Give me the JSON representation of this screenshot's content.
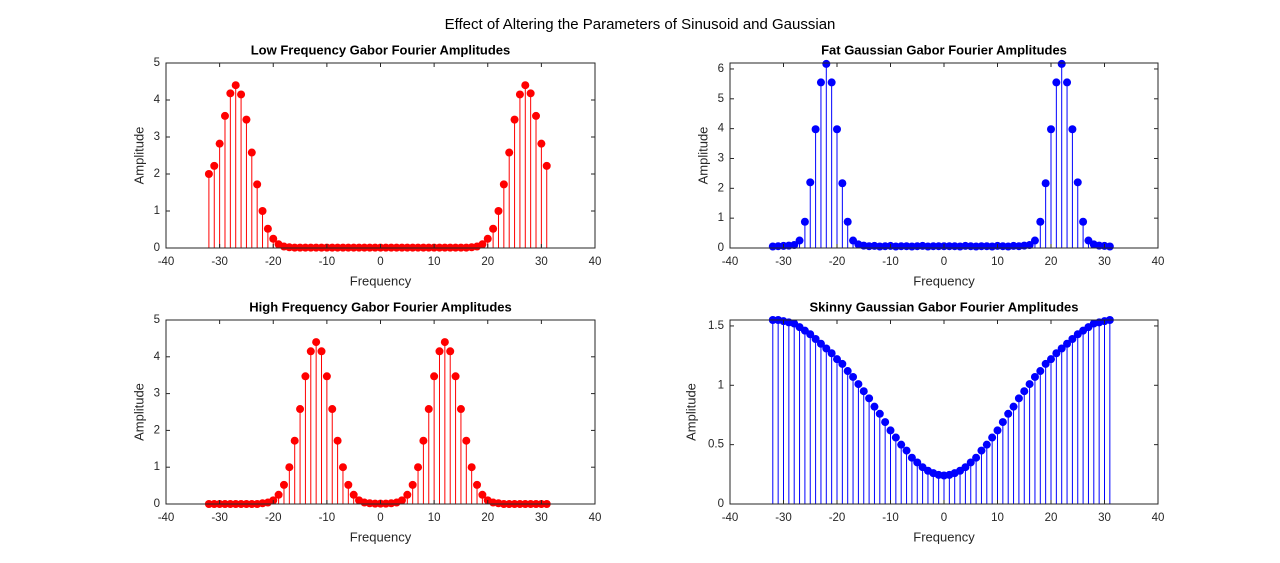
{
  "title": "Effect of Altering the Parameters of Sinusoid and Gaussian",
  "chart_data": [
    {
      "type": "stem",
      "title": "Low Frequency Gabor Fourier Amplitudes",
      "xlabel": "Frequency",
      "ylabel": "Amplitude",
      "color": "#ff0000",
      "x": [
        -32,
        -31,
        -30,
        -29,
        -28,
        -27,
        -26,
        -25,
        -24,
        -23,
        -22,
        -21,
        -20,
        -19,
        -18,
        -17,
        -16,
        -15,
        -14,
        -13,
        -12,
        -11,
        -10,
        -9,
        -8,
        -7,
        -6,
        -5,
        -4,
        -3,
        -2,
        -1,
        0,
        1,
        2,
        3,
        4,
        5,
        6,
        7,
        8,
        9,
        10,
        11,
        12,
        13,
        14,
        15,
        16,
        17,
        18,
        19,
        20,
        21,
        22,
        23,
        24,
        25,
        26,
        27,
        28,
        29,
        30,
        31
      ],
      "values": [
        2.0,
        2.22,
        2.82,
        3.57,
        4.18,
        4.4,
        4.15,
        3.47,
        2.58,
        1.72,
        1.0,
        0.52,
        0.25,
        0.1,
        0.04,
        0.02,
        0.01,
        0.01,
        0.01,
        0.01,
        0.01,
        0.01,
        0.01,
        0.01,
        0.01,
        0.01,
        0.01,
        0.01,
        0.01,
        0.01,
        0.01,
        0.01,
        0.01,
        0.01,
        0.01,
        0.01,
        0.01,
        0.01,
        0.01,
        0.01,
        0.01,
        0.01,
        0.01,
        0.01,
        0.01,
        0.01,
        0.01,
        0.01,
        0.01,
        0.02,
        0.04,
        0.1,
        0.25,
        0.52,
        1.0,
        1.72,
        2.58,
        3.47,
        4.15,
        4.4,
        4.18,
        3.57,
        2.82,
        2.22
      ],
      "xlim": [
        -40,
        40
      ],
      "xticks": [
        -40,
        -30,
        -20,
        -10,
        0,
        10,
        20,
        30,
        40
      ],
      "ylim": [
        0,
        5
      ],
      "yticks": [
        0,
        1,
        2,
        3,
        4,
        5
      ]
    },
    {
      "type": "stem",
      "title": "Fat Gaussian Gabor Fourier Amplitudes",
      "xlabel": "Frequency",
      "ylabel": "Amplitude",
      "color": "#0000ff",
      "x": [
        -32,
        -31,
        -30,
        -29,
        -28,
        -27,
        -26,
        -25,
        -24,
        -23,
        -22,
        -21,
        -20,
        -19,
        -18,
        -17,
        -16,
        -15,
        -14,
        -13,
        -12,
        -11,
        -10,
        -9,
        -8,
        -7,
        -6,
        -5,
        -4,
        -3,
        -2,
        -1,
        0,
        1,
        2,
        3,
        4,
        5,
        6,
        7,
        8,
        9,
        10,
        11,
        12,
        13,
        14,
        15,
        16,
        17,
        18,
        19,
        20,
        21,
        22,
        23,
        24,
        25,
        26,
        27,
        28,
        29,
        30,
        31
      ],
      "values": [
        0.05,
        0.06,
        0.07,
        0.08,
        0.1,
        0.25,
        0.88,
        2.2,
        3.98,
        5.55,
        6.17,
        5.55,
        3.98,
        2.17,
        0.88,
        0.25,
        0.12,
        0.08,
        0.06,
        0.07,
        0.05,
        0.06,
        0.07,
        0.05,
        0.06,
        0.06,
        0.05,
        0.06,
        0.07,
        0.05,
        0.06,
        0.06,
        0.06,
        0.06,
        0.06,
        0.05,
        0.07,
        0.06,
        0.05,
        0.06,
        0.06,
        0.05,
        0.07,
        0.06,
        0.05,
        0.07,
        0.06,
        0.08,
        0.1,
        0.25,
        0.88,
        2.17,
        3.98,
        5.55,
        6.17,
        5.55,
        3.98,
        2.2,
        0.88,
        0.25,
        0.12,
        0.08,
        0.07,
        0.05
      ],
      "xlim": [
        -40,
        40
      ],
      "xticks": [
        -40,
        -30,
        -20,
        -10,
        0,
        10,
        20,
        30,
        40
      ],
      "ylim": [
        0,
        6.2
      ],
      "yticks": [
        0,
        1,
        2,
        3,
        4,
        5,
        6
      ]
    },
    {
      "type": "stem",
      "title": "High Frequency Gabor Fourier Amplitudes",
      "xlabel": "Frequency",
      "ylabel": "Amplitude",
      "color": "#ff0000",
      "x": [
        -32,
        -31,
        -30,
        -29,
        -28,
        -27,
        -26,
        -25,
        -24,
        -23,
        -22,
        -21,
        -20,
        -19,
        -18,
        -17,
        -16,
        -15,
        -14,
        -13,
        -12,
        -11,
        -10,
        -9,
        -8,
        -7,
        -6,
        -5,
        -4,
        -3,
        -2,
        -1,
        0,
        1,
        2,
        3,
        4,
        5,
        6,
        7,
        8,
        9,
        10,
        11,
        12,
        13,
        14,
        15,
        16,
        17,
        18,
        19,
        20,
        21,
        22,
        23,
        24,
        25,
        26,
        27,
        28,
        29,
        30,
        31
      ],
      "values": [
        0,
        0,
        0,
        0,
        0,
        0,
        0,
        0,
        0,
        0,
        0.02,
        0.04,
        0.1,
        0.25,
        0.52,
        1.0,
        1.72,
        2.58,
        3.47,
        4.15,
        4.4,
        4.15,
        3.47,
        2.58,
        1.72,
        1.0,
        0.52,
        0.25,
        0.1,
        0.04,
        0.02,
        0.01,
        0.01,
        0.01,
        0.02,
        0.04,
        0.1,
        0.25,
        0.52,
        1.0,
        1.72,
        2.58,
        3.47,
        4.15,
        4.4,
        4.15,
        3.47,
        2.58,
        1.72,
        1.0,
        0.52,
        0.25,
        0.1,
        0.04,
        0.02,
        0,
        0,
        0,
        0,
        0,
        0,
        0,
        0,
        0
      ],
      "xlim": [
        -40,
        40
      ],
      "xticks": [
        -40,
        -30,
        -20,
        -10,
        0,
        10,
        20,
        30,
        40
      ],
      "ylim": [
        0,
        5
      ],
      "yticks": [
        0,
        1,
        2,
        3,
        4,
        5
      ]
    },
    {
      "type": "stem",
      "title": "Skinny Gaussian Gabor Fourier Amplitudes",
      "xlabel": "Frequency",
      "ylabel": "Amplitude",
      "color": "#0000ff",
      "x": [
        -32,
        -31,
        -30,
        -29,
        -28,
        -27,
        -26,
        -25,
        -24,
        -23,
        -22,
        -21,
        -20,
        -19,
        -18,
        -17,
        -16,
        -15,
        -14,
        -13,
        -12,
        -11,
        -10,
        -9,
        -8,
        -7,
        -6,
        -5,
        -4,
        -3,
        -2,
        -1,
        0,
        1,
        2,
        3,
        4,
        5,
        6,
        7,
        8,
        9,
        10,
        11,
        12,
        13,
        14,
        15,
        16,
        17,
        18,
        19,
        20,
        21,
        22,
        23,
        24,
        25,
        26,
        27,
        28,
        29,
        30,
        31
      ],
      "values": [
        1.55,
        1.55,
        1.54,
        1.53,
        1.52,
        1.49,
        1.46,
        1.43,
        1.39,
        1.35,
        1.31,
        1.27,
        1.22,
        1.18,
        1.12,
        1.07,
        1.01,
        0.95,
        0.89,
        0.82,
        0.76,
        0.69,
        0.62,
        0.56,
        0.5,
        0.45,
        0.39,
        0.35,
        0.31,
        0.28,
        0.26,
        0.245,
        0.24,
        0.245,
        0.26,
        0.28,
        0.31,
        0.35,
        0.39,
        0.45,
        0.5,
        0.56,
        0.62,
        0.69,
        0.76,
        0.82,
        0.89,
        0.95,
        1.01,
        1.07,
        1.12,
        1.18,
        1.22,
        1.27,
        1.31,
        1.35,
        1.39,
        1.43,
        1.46,
        1.49,
        1.52,
        1.53,
        1.54,
        1.55
      ],
      "xlim": [
        -40,
        40
      ],
      "xticks": [
        -40,
        -30,
        -20,
        -10,
        0,
        10,
        20,
        30,
        40
      ],
      "ylim": [
        0,
        1.55
      ],
      "yticks": [
        0,
        0.5,
        1,
        1.5
      ]
    }
  ]
}
